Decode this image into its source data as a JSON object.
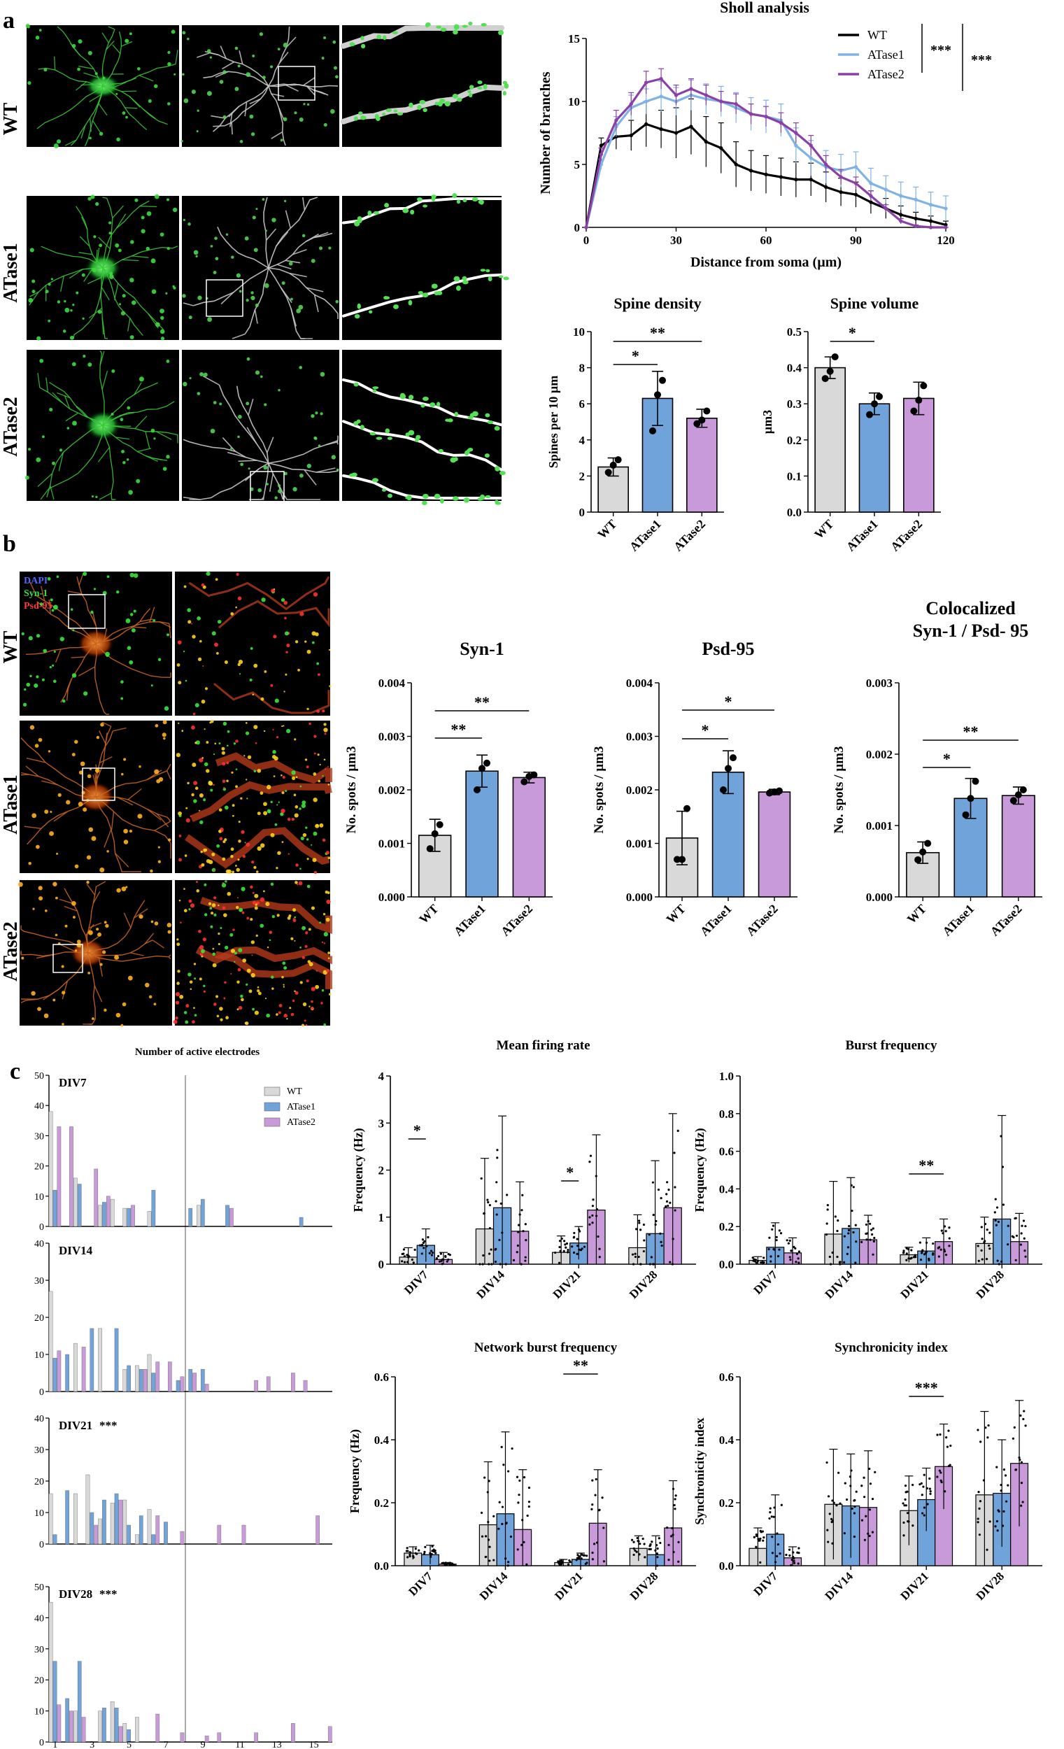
{
  "colors": {
    "WT": "#d9d9d9",
    "ATase1": "#6fa3da",
    "ATase2": "#c99ad9",
    "wt_line": "#000000",
    "atase1_line": "#7fb2e5",
    "atase2_line": "#8b3fa8"
  },
  "panels": {
    "a": {
      "label": "a",
      "rows": [
        "WT",
        "ATase1",
        "ATase2"
      ]
    },
    "b": {
      "label": "b",
      "rows": [
        "WT",
        "ATase1",
        "ATase2"
      ],
      "legend": [
        "DAPI",
        "Syn-1",
        "Psd-95"
      ]
    },
    "c": {
      "label": "c"
    }
  },
  "chart_data": [
    {
      "id": "sholl",
      "type": "line",
      "title": "Sholl analysis",
      "xlabel": "Distance from soma (µm)",
      "ylabel": "Number of branches",
      "xlim": [
        0,
        120
      ],
      "ylim": [
        0,
        15
      ],
      "xticks": [
        0,
        30,
        60,
        90,
        120
      ],
      "yticks": [
        0,
        5,
        10,
        15
      ],
      "x": [
        0,
        5,
        10,
        15,
        20,
        25,
        30,
        35,
        40,
        45,
        50,
        55,
        60,
        65,
        70,
        75,
        80,
        85,
        90,
        95,
        100,
        105,
        110,
        115,
        120
      ],
      "series": [
        {
          "name": "WT",
          "values": [
            0,
            6.5,
            7.2,
            7.3,
            8.2,
            7.8,
            7.5,
            8,
            6.8,
            6.3,
            5,
            4.5,
            4.2,
            4,
            3.8,
            3.8,
            3.2,
            2.8,
            2.6,
            2,
            1.5,
            1,
            0.7,
            0.5,
            0.2
          ],
          "errors": [
            0,
            0.6,
            1,
            1.2,
            1.8,
            1.5,
            2,
            2.2,
            2,
            2,
            1.8,
            1.6,
            1.5,
            1.5,
            1.4,
            1.3,
            1.2,
            1.1,
            1,
            0.9,
            0.8,
            0.7,
            0.5,
            0.4,
            0.3
          ]
        },
        {
          "name": "ATase1",
          "values": [
            0,
            5,
            8,
            9.5,
            10,
            10.4,
            10,
            10.5,
            10.2,
            10,
            9.5,
            9,
            8.8,
            8.5,
            6.5,
            5.5,
            4.8,
            4.5,
            4.8,
            3.5,
            3,
            2.5,
            2.2,
            1.8,
            1.5
          ],
          "errors": [
            0,
            0.4,
            0.8,
            1,
            1,
            1.2,
            1.1,
            1.2,
            1.2,
            1.2,
            1.2,
            1.3,
            1.3,
            1.3,
            1.4,
            1.4,
            1.3,
            1.3,
            1.2,
            1.2,
            1.1,
            1.1,
            1,
            1,
            1
          ]
        },
        {
          "name": "ATase2",
          "values": [
            0,
            5.8,
            8.5,
            9.8,
            11.5,
            11.8,
            10.5,
            11,
            10.5,
            10,
            9.8,
            9,
            8.8,
            8.3,
            7.5,
            6.5,
            5,
            4,
            3.5,
            2.5,
            1.5,
            0.5,
            0.1,
            0,
            0
          ],
          "errors": [
            0,
            0.5,
            0.8,
            0.9,
            0.9,
            0.8,
            0.8,
            0.8,
            0.8,
            0.8,
            0.8,
            0.8,
            0.8,
            0.8,
            0.8,
            0.8,
            0.7,
            0.6,
            0.5,
            0.4,
            0.3,
            0.2,
            0.1,
            0,
            0
          ]
        }
      ],
      "significance": [
        "***",
        "***"
      ]
    },
    {
      "id": "spine_density",
      "type": "bar",
      "title": "Spine density",
      "ylabel": "Spines per 10 µm",
      "categories": [
        "WT",
        "ATase1",
        "ATase2"
      ],
      "values": [
        2.5,
        6.3,
        5.2
      ],
      "errors": [
        0.5,
        1.5,
        0.5
      ],
      "points": [
        [
          2.2,
          2.6,
          2.9
        ],
        [
          4.5,
          6.5,
          7.3
        ],
        [
          4.9,
          5.1,
          5.6
        ]
      ],
      "ylim": [
        0,
        10
      ],
      "yticks": [
        0,
        2,
        4,
        6,
        8,
        10
      ],
      "significance": [
        "**",
        "*"
      ]
    },
    {
      "id": "spine_volume",
      "type": "bar",
      "title": "Spine volume",
      "ylabel": "µm3",
      "categories": [
        "WT",
        "ATase1",
        "ATase2"
      ],
      "values": [
        0.4,
        0.3,
        0.315
      ],
      "errors": [
        0.03,
        0.03,
        0.045
      ],
      "points": [
        [
          0.37,
          0.39,
          0.43
        ],
        [
          0.27,
          0.3,
          0.32
        ],
        [
          0.28,
          0.31,
          0.35
        ]
      ],
      "ylim": [
        0,
        0.5
      ],
      "yticks": [
        "0.0",
        "0.1",
        "0.2",
        "0.3",
        "0.4",
        "0.5"
      ],
      "significance": [
        "*"
      ]
    },
    {
      "id": "syn1",
      "type": "bar",
      "title": "Syn-1",
      "ylabel": "No. spots / µm3",
      "categories": [
        "WT",
        "ATase1",
        "ATase2"
      ],
      "values": [
        0.00115,
        0.00235,
        0.00223
      ],
      "errors": [
        0.0003,
        0.0003,
        0.0001
      ],
      "points": [
        [
          0.0009,
          0.00118,
          0.00135
        ],
        [
          0.002,
          0.0024,
          0.0025
        ],
        [
          0.00215,
          0.00225,
          0.00228
        ]
      ],
      "ylim": [
        0,
        0.004
      ],
      "yticks": [
        "0.000",
        "0.001",
        "0.002",
        "0.003",
        "0.004"
      ],
      "significance": [
        "**",
        "**"
      ]
    },
    {
      "id": "psd95",
      "type": "bar",
      "title": "Psd-95",
      "ylabel": "No. spots / µm3",
      "categories": [
        "WT",
        "ATase1",
        "ATase2"
      ],
      "values": [
        0.0011,
        0.00233,
        0.00196
      ],
      "errors": [
        0.0005,
        0.0004,
        5e-05
      ],
      "points": [
        [
          0.0007,
          0.0007,
          0.00165
        ],
        [
          0.002,
          0.0024,
          0.0026
        ],
        [
          0.00194,
          0.00196,
          0.00198
        ]
      ],
      "ylim": [
        0,
        0.004
      ],
      "yticks": [
        "0.000",
        "0.001",
        "0.002",
        "0.003",
        "0.004"
      ],
      "significance": [
        "*",
        "*"
      ]
    },
    {
      "id": "coloc",
      "type": "bar",
      "title": "Colocalized",
      "title2": "Syn-1 / Psd- 95",
      "ylabel": "No. spots / µm3",
      "categories": [
        "WT",
        "ATase1",
        "ATase2"
      ],
      "values": [
        0.00062,
        0.00138,
        0.00142
      ],
      "errors": [
        0.00015,
        0.00028,
        0.00012
      ],
      "points": [
        [
          0.00052,
          0.00063,
          0.00075
        ],
        [
          0.00115,
          0.00138,
          0.00162
        ],
        [
          0.00135,
          0.00143,
          0.0015
        ]
      ],
      "ylim": [
        0,
        0.003
      ],
      "yticks": [
        "0.000",
        "0.001",
        "0.002",
        "0.003"
      ],
      "significance": [
        "**",
        "*"
      ]
    },
    {
      "id": "active_electrodes",
      "type": "bar",
      "title": "Number of active electrodes",
      "legend": [
        "WT",
        "ATase1",
        "ATase2"
      ],
      "xticks": [
        "1",
        "3",
        "5",
        "7",
        "9",
        "11",
        "13",
        "15"
      ],
      "subpanels": [
        {
          "label": "DIV7",
          "ylim": [
            0,
            50
          ],
          "yticks": [
            "0",
            "10",
            "20",
            "30",
            "40",
            "50"
          ],
          "WT": [
            38,
            0,
            16,
            0,
            7,
            9,
            6,
            0,
            5,
            0,
            0,
            0,
            7,
            0,
            0,
            0,
            0,
            0,
            0,
            0,
            0,
            0,
            0
          ],
          "ATase1": [
            12,
            0,
            14,
            0,
            8,
            0,
            6,
            0,
            12,
            0,
            0,
            6,
            9,
            0,
            7,
            0,
            0,
            0,
            0,
            0,
            3,
            0,
            0
          ],
          "ATase2": [
            33,
            33,
            0,
            19,
            10,
            0,
            7,
            0,
            0,
            0,
            0,
            0,
            0,
            0,
            6,
            0,
            0,
            0,
            0,
            0,
            0,
            0,
            0
          ]
        },
        {
          "label": "DIV14",
          "ylim": [
            0,
            40
          ],
          "yticks": [
            "0",
            "10",
            "20",
            "30",
            "40"
          ],
          "WT": [
            27,
            0,
            13,
            0,
            17,
            0,
            6,
            7,
            10,
            0,
            0,
            0,
            0,
            0,
            0,
            0,
            0,
            0,
            0,
            0,
            0,
            0,
            0
          ],
          "ATase1": [
            9,
            10,
            0,
            17,
            0,
            17,
            7,
            6,
            5,
            0,
            3,
            6,
            6,
            0,
            0,
            0,
            0,
            0,
            0,
            0,
            0,
            0,
            0
          ],
          "ATase2": [
            11,
            0,
            12,
            0,
            0,
            0,
            0,
            6,
            8,
            8,
            4,
            5,
            2,
            0,
            0,
            0,
            3,
            4,
            0,
            5,
            3,
            0,
            0
          ]
        },
        {
          "label": "DIV21",
          "ylim": [
            0,
            40
          ],
          "yticks": [
            "0",
            "10",
            "20",
            "30",
            "40"
          ],
          "WT": [
            16,
            0,
            16,
            22,
            8,
            13,
            14,
            3,
            11,
            0,
            0,
            0,
            0,
            0,
            0,
            0,
            0,
            0,
            0,
            0,
            0,
            0,
            0
          ],
          "ATase1": [
            3,
            17,
            0,
            10,
            14,
            16,
            6,
            9,
            3,
            7,
            0,
            0,
            0,
            0,
            0,
            0,
            0,
            0,
            0,
            0,
            0,
            0,
            0
          ],
          "ATase2": [
            0,
            0,
            0,
            6,
            0,
            14,
            0,
            0,
            9,
            0,
            4,
            0,
            0,
            6,
            0,
            6,
            0,
            0,
            0,
            0,
            0,
            9,
            0
          ]
        },
        {
          "label": "DIV28",
          "ylim": [
            0,
            50
          ],
          "yticks": [
            "0",
            "10",
            "20",
            "30",
            "40",
            "50"
          ],
          "WT": [
            45,
            0,
            10,
            0,
            10,
            13,
            6,
            8,
            0,
            0,
            0,
            0,
            0,
            0,
            0,
            0,
            0,
            0,
            0,
            0,
            0,
            0,
            0
          ],
          "ATase1": [
            26,
            14,
            26,
            0,
            11,
            11,
            4,
            0,
            0,
            0,
            0,
            0,
            0,
            0,
            0,
            0,
            0,
            0,
            0,
            0,
            0,
            0,
            0
          ],
          "ATase2": [
            12,
            10,
            8,
            0,
            0,
            5,
            0,
            0,
            9,
            0,
            3,
            0,
            2,
            3,
            0,
            0,
            3,
            0,
            0,
            6,
            0,
            0,
            5
          ]
        }
      ],
      "significance": {
        "DIV21": "***",
        "DIV28": "***"
      }
    },
    {
      "id": "mfr",
      "type": "bar",
      "title": "Mean firing rate",
      "ylabel": "Frequency (Hz)",
      "categories": [
        "DIV7",
        "DIV14",
        "DIV21",
        "DIV28"
      ],
      "ylim": [
        0,
        4
      ],
      "yticks": [
        "0",
        "1",
        "2",
        "3",
        "4"
      ],
      "series": [
        {
          "name": "WT",
          "values": [
            0.15,
            0.75,
            0.25,
            0.35
          ],
          "errors": [
            0.2,
            1.5,
            0.35,
            0.7
          ]
        },
        {
          "name": "ATase1",
          "values": [
            0.4,
            1.2,
            0.45,
            0.65
          ],
          "errors": [
            0.35,
            1.95,
            0.35,
            1.55
          ]
        },
        {
          "name": "ATase2",
          "values": [
            0.1,
            0.7,
            1.15,
            1.2
          ],
          "errors": [
            0.15,
            1.05,
            1.6,
            2.0
          ]
        }
      ],
      "significance": [
        {
          "group": "DIV7",
          "label": "*"
        },
        {
          "group": "DIV21",
          "label": "*"
        }
      ]
    },
    {
      "id": "burst",
      "type": "bar",
      "title": "Burst frequency",
      "ylabel": "Frequency (Hz)",
      "categories": [
        "DIV7",
        "DIV14",
        "DIV21",
        "DIV28"
      ],
      "ylim": [
        0,
        1.0
      ],
      "yticks": [
        "0.0",
        "0.2",
        "0.4",
        "0.6",
        "0.8",
        "1.0"
      ],
      "series": [
        {
          "name": "WT",
          "values": [
            0.02,
            0.16,
            0.05,
            0.11
          ],
          "errors": [
            0.02,
            0.28,
            0.04,
            0.14
          ]
        },
        {
          "name": "ATase1",
          "values": [
            0.09,
            0.19,
            0.07,
            0.24
          ],
          "errors": [
            0.13,
            0.27,
            0.07,
            0.55
          ]
        },
        {
          "name": "ATase2",
          "values": [
            0.06,
            0.13,
            0.12,
            0.12
          ],
          "errors": [
            0.08,
            0.13,
            0.12,
            0.15
          ]
        }
      ],
      "significance": [
        {
          "group": "DIV21",
          "label": "**"
        }
      ]
    },
    {
      "id": "nbf",
      "type": "bar",
      "title": "Network burst frequency",
      "ylabel": "Frequency (Hz)",
      "categories": [
        "DIV7",
        "DIV14",
        "DIV21",
        "DIV28"
      ],
      "ylim": [
        0,
        0.6
      ],
      "yticks": [
        "0.0",
        "0.2",
        "0.4",
        "0.6"
      ],
      "series": [
        {
          "name": "WT",
          "values": [
            0.04,
            0.13,
            0.01,
            0.055
          ],
          "errors": [
            0.02,
            0.2,
            0.01,
            0.04
          ]
        },
        {
          "name": "ATase1",
          "values": [
            0.035,
            0.165,
            0.02,
            0.035
          ],
          "errors": [
            0.03,
            0.26,
            0.02,
            0.06
          ]
        },
        {
          "name": "ATase2",
          "values": [
            0.005,
            0.115,
            0.135,
            0.12
          ],
          "errors": [
            0.005,
            0.19,
            0.17,
            0.15
          ]
        }
      ],
      "significance": [
        {
          "group": "DIV21",
          "label": "**"
        }
      ]
    },
    {
      "id": "sync",
      "type": "bar",
      "title": "Synchronicity index",
      "ylabel": "Synchronicity index",
      "categories": [
        "DIV7",
        "DIV14",
        "DIV21",
        "DIV28"
      ],
      "ylim": [
        0,
        0.6
      ],
      "yticks": [
        "0.0",
        "0.2",
        "0.4",
        "0.6"
      ],
      "series": [
        {
          "name": "WT",
          "values": [
            0.055,
            0.195,
            0.175,
            0.225
          ],
          "errors": [
            0.065,
            0.175,
            0.11,
            0.265
          ]
        },
        {
          "name": "ATase1",
          "values": [
            0.1,
            0.19,
            0.21,
            0.23
          ],
          "errors": [
            0.125,
            0.165,
            0.1,
            0.17
          ]
        },
        {
          "name": "ATase2",
          "values": [
            0.025,
            0.185,
            0.315,
            0.325
          ],
          "errors": [
            0.035,
            0.18,
            0.135,
            0.2
          ]
        }
      ],
      "significance": [
        {
          "group": "DIV21",
          "label": "***"
        }
      ]
    }
  ]
}
